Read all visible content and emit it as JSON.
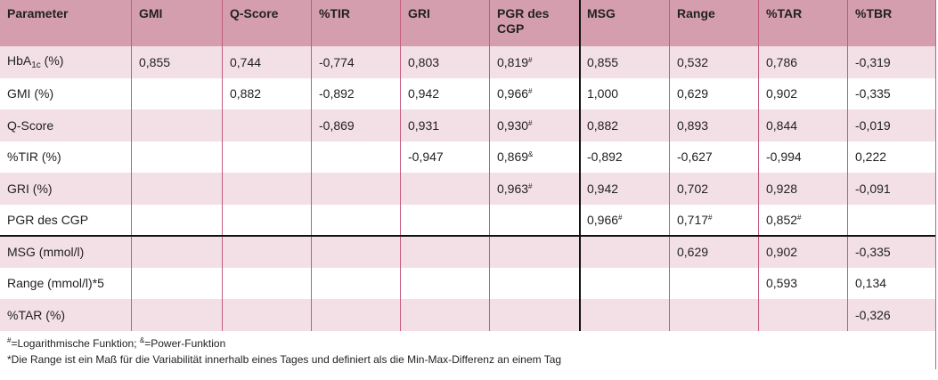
{
  "table": {
    "header": [
      "Parameter",
      "GMI",
      "Q-Score",
      "%TIR",
      "GRI",
      "PGR des CGP",
      "MSG",
      "Range",
      "%TAR",
      "%TBR"
    ],
    "rows": [
      [
        {
          "text": "HbA",
          "sub": "1c",
          "after": " (%)"
        },
        "0,855",
        "0,744",
        "-0,774",
        "0,803",
        {
          "text": "0,819",
          "sup": "#"
        },
        "0,855",
        "0,532",
        "0,786",
        "-0,319"
      ],
      [
        "GMI (%)",
        null,
        "0,882",
        "-0,892",
        "0,942",
        {
          "text": "0,966",
          "sup": "#"
        },
        "1,000",
        "0,629",
        "0,902",
        "-0,335"
      ],
      [
        "Q-Score",
        null,
        null,
        "-0,869",
        "0,931",
        {
          "text": "0,930",
          "sup": "#"
        },
        "0,882",
        "0,893",
        "0,844",
        "-0,019"
      ],
      [
        "%TIR (%)",
        null,
        null,
        null,
        "-0,947",
        {
          "text": "0,869",
          "sup": "&"
        },
        "-0,892",
        "-0,627",
        "-0,994",
        "0,222"
      ],
      [
        "GRI (%)",
        null,
        null,
        null,
        null,
        {
          "text": "0,963",
          "sup": "#"
        },
        "0,942",
        "0,702",
        "0,928",
        "-0,091"
      ],
      [
        "PGR des CGP",
        null,
        null,
        null,
        null,
        null,
        {
          "text": "0,966",
          "sup": "#"
        },
        {
          "text": "0,717",
          "sup": "#"
        },
        {
          "text": "0,852",
          "sup": "#"
        },
        null
      ],
      [
        "MSG (mmol/l)",
        null,
        null,
        null,
        null,
        null,
        null,
        "0,629",
        "0,902",
        "-0,335"
      ],
      [
        "Range (mmol/l)*5",
        null,
        null,
        null,
        null,
        null,
        null,
        null,
        "0,593",
        "0,134"
      ],
      [
        "%TAR (%)",
        null,
        null,
        null,
        null,
        null,
        null,
        null,
        null,
        "-0,326"
      ]
    ],
    "footnotes": [
      [
        {
          "sup": "#",
          "text": "=Logarithmische Funktion; "
        },
        {
          "sup": "&",
          "text": "=Power-Funktion"
        }
      ],
      [
        {
          "text": "*Die Range ist ein Maß für die Variabilität innerhalb eines Tages und definiert als die Min-Max-Differenz an einem Tag"
        }
      ]
    ]
  }
}
